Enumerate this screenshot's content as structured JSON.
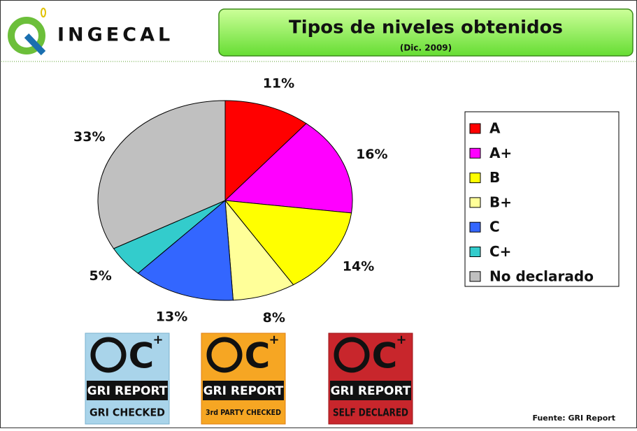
{
  "header": {
    "logo": "INGECAL",
    "title": "Tipos de niveles obtenidos",
    "subtitle": "(Dic. 2009)"
  },
  "chart_data": {
    "type": "pie",
    "categories": [
      "A",
      "A+",
      "B",
      "B+",
      "C",
      "C+",
      "No declarado"
    ],
    "values": [
      11,
      16,
      14,
      8,
      13,
      5,
      33
    ],
    "value_labels": [
      "11%",
      "16%",
      "14%",
      "8%",
      "13%",
      "5%",
      "33%"
    ],
    "colors": [
      "#ff0000",
      "#ff00ff",
      "#ffff00",
      "#ffff99",
      "#3366ff",
      "#33cccc",
      "#c0c0c0"
    ],
    "legend": "right"
  },
  "badges": [
    {
      "letter": "C",
      "plus": "+",
      "line1": "GRI REPORT",
      "line2": "GRI CHECKED"
    },
    {
      "letter": "C",
      "plus": "+",
      "line1": "GRI REPORT",
      "line2": "3rd PARTY CHECKED"
    },
    {
      "letter": "C",
      "plus": "+",
      "line1": "GRI REPORT",
      "line2": "SELF DECLARED"
    }
  ],
  "footer": {
    "source": "Fuente: GRI Report"
  }
}
